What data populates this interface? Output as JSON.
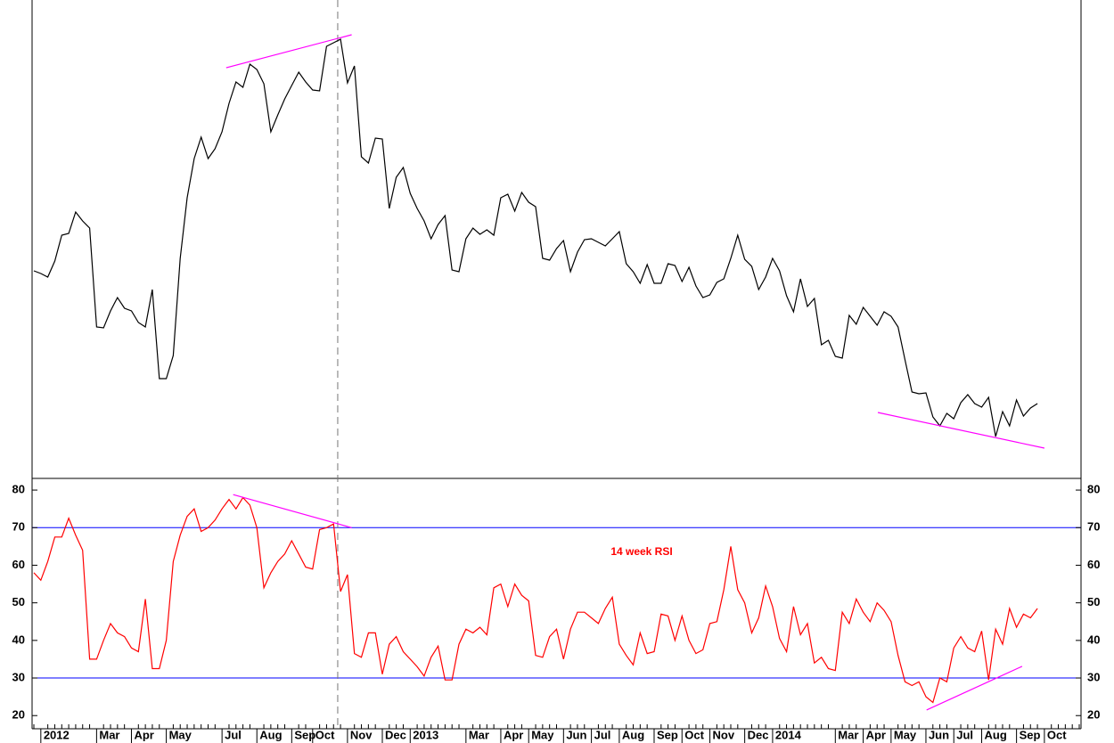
{
  "chart_data": [
    {
      "type": "line",
      "color": "#000000",
      "ylim": [
        0,
        537
      ],
      "values": [
        233,
        230,
        226,
        244,
        273,
        275,
        299,
        289,
        281,
        170,
        169,
        188,
        203,
        191,
        188,
        175,
        170,
        212,
        112,
        112,
        138,
        247,
        315,
        359,
        383,
        359,
        370,
        389,
        421,
        445,
        439,
        465,
        459,
        443,
        389,
        408,
        426,
        441,
        456,
        445,
        436,
        435,
        485,
        489,
        493,
        444,
        463,
        361,
        354,
        382,
        381,
        303,
        338,
        349,
        320,
        303,
        289,
        269,
        285,
        295,
        234,
        232,
        269,
        281,
        274,
        279,
        273,
        315,
        319,
        300,
        321,
        310,
        305,
        247,
        245,
        258,
        267,
        232,
        254,
        268,
        269,
        265,
        261,
        269,
        277,
        241,
        232,
        219,
        240,
        219,
        219,
        241,
        239,
        221,
        237,
        216,
        203,
        206,
        220,
        224,
        247,
        273,
        246,
        238,
        212,
        226,
        247,
        233,
        205,
        187,
        224,
        193,
        202,
        150,
        155,
        137,
        135,
        183,
        173,
        192,
        182,
        172,
        187,
        182,
        170,
        133,
        97,
        95,
        96,
        69,
        59,
        73,
        67,
        85,
        94,
        84,
        80,
        91,
        47,
        75,
        59,
        88,
        70,
        79,
        84,
        null,
        null,
        null,
        null,
        null,
        null
      ],
      "marker_x": 43.6,
      "trendlines": [
        {
          "color": "#ff00ff",
          "x": [
            27.6,
            45.6
          ],
          "y": [
            461,
            498
          ]
        },
        {
          "color": "#ff00ff",
          "x": [
            121.1,
            145
          ],
          "y": [
            74,
            34
          ]
        }
      ]
    },
    {
      "type": "line",
      "color": "#ff0000",
      "annotation": "14 week RSI",
      "categories": [
        null,
        "2012",
        null,
        null,
        null,
        null,
        null,
        null,
        null,
        "Mar",
        null,
        null,
        null,
        null,
        "Apr",
        null,
        null,
        null,
        null,
        "May",
        null,
        null,
        null,
        null,
        null,
        null,
        null,
        "Jul",
        null,
        null,
        null,
        null,
        "Aug",
        null,
        null,
        null,
        null,
        "Sep",
        null,
        null,
        "Oct",
        null,
        null,
        null,
        null,
        "Nov",
        null,
        null,
        null,
        null,
        "Dec",
        null,
        null,
        null,
        "2013",
        null,
        null,
        null,
        null,
        null,
        null,
        null,
        "Mar",
        null,
        null,
        null,
        null,
        "Apr",
        null,
        null,
        null,
        "May",
        null,
        null,
        null,
        null,
        "Jun",
        null,
        null,
        null,
        "Jul",
        null,
        null,
        null,
        "Aug",
        null,
        null,
        null,
        null,
        "Sep",
        null,
        null,
        null,
        "Oct",
        null,
        null,
        null,
        "Nov",
        null,
        null,
        null,
        null,
        "Dec",
        null,
        null,
        null,
        "2014",
        null,
        null,
        null,
        null,
        null,
        null,
        null,
        null,
        "Mar",
        null,
        null,
        null,
        "Apr",
        null,
        null,
        null,
        "May",
        null,
        null,
        null,
        null,
        "Jun",
        null,
        null,
        null,
        "Jul",
        null,
        null,
        null,
        "Aug",
        null,
        null,
        null,
        null,
        "Sep",
        null,
        null,
        null,
        "Oct",
        null,
        null,
        null,
        null,
        null
      ],
      "values": [
        58,
        56,
        61,
        67.5,
        67.5,
        72.5,
        68,
        64,
        35,
        35,
        40,
        44.5,
        42,
        41,
        38,
        37,
        51,
        32.5,
        32.5,
        40,
        61,
        68,
        73,
        75,
        69,
        70,
        72,
        75,
        77.5,
        75,
        78,
        76,
        70,
        54,
        58,
        61,
        63,
        66.5,
        63,
        59.5,
        59,
        69.5,
        70,
        71,
        53,
        57.5,
        36.5,
        35.5,
        42,
        42,
        31,
        39,
        41,
        37,
        35,
        33,
        30.5,
        35.5,
        38.5,
        29.5,
        29.5,
        39,
        43,
        42,
        43.5,
        41.5,
        54,
        55,
        49,
        55,
        52,
        50.5,
        36,
        35.5,
        41,
        43,
        35,
        43,
        47.5,
        47.5,
        46,
        44.5,
        48.5,
        51.5,
        39,
        36,
        33.5,
        42,
        36.5,
        37,
        47,
        46.5,
        40,
        46.5,
        40,
        36.5,
        37.5,
        44.5,
        45,
        53.5,
        65,
        53.5,
        50,
        42,
        46,
        54.5,
        49,
        40.5,
        37,
        49,
        41.5,
        44.5,
        34,
        35.5,
        32.5,
        32,
        47.5,
        44.5,
        51,
        47.5,
        45,
        50,
        48,
        45,
        36,
        29,
        28,
        29,
        25,
        23.5,
        30,
        29,
        38,
        41,
        38,
        37,
        42.5,
        29.5,
        43,
        39,
        48.5,
        43.5,
        47,
        46,
        48.5,
        null,
        null,
        null,
        null,
        null,
        null
      ],
      "ylim": [
        16.5,
        83.1
      ],
      "yticks": [
        20,
        30,
        40,
        50,
        60,
        70,
        80
      ],
      "reference_lines": {
        "color": "#0000ff",
        "values": [
          30,
          70
        ]
      },
      "trendlines": [
        {
          "color": "#ff00ff",
          "x": [
            28.6,
            45.6
          ],
          "y": [
            78.8,
            70
          ]
        },
        {
          "color": "#ff00ff",
          "x": [
            128.1,
            141.8
          ],
          "y": [
            21.5,
            33.1
          ]
        }
      ]
    }
  ]
}
